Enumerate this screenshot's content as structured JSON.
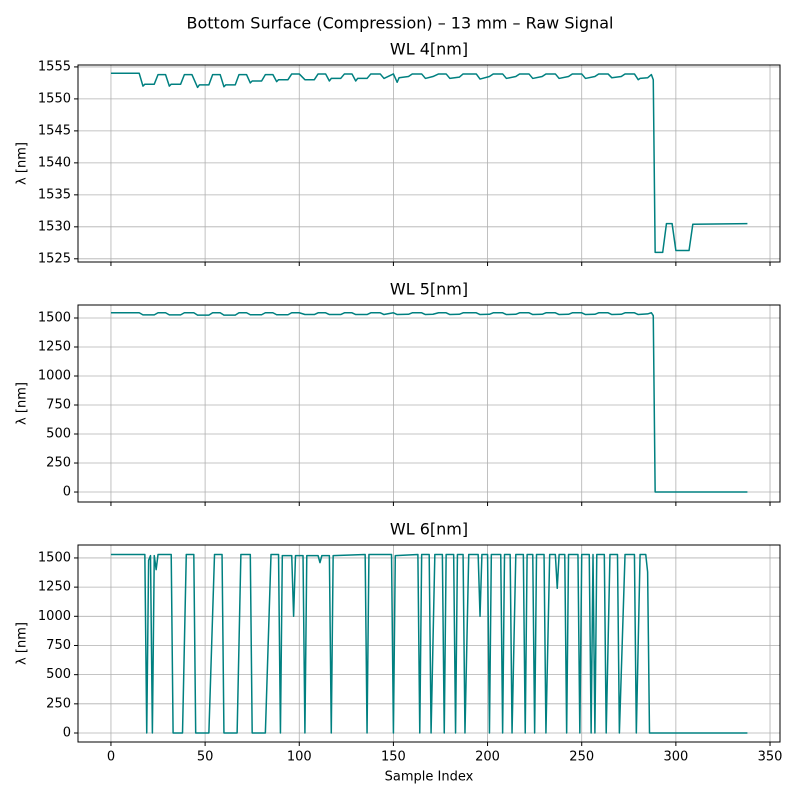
{
  "title": "Bottom Surface (Compression) – 13 mm – Raw Signal",
  "chart_data": [
    {
      "type": "line",
      "title": "WL 4[nm]",
      "ylabel": "λ [nm]",
      "grid": true,
      "show_xticklabels": false,
      "xlim": [
        -17.5,
        355.3
      ],
      "xticks": [
        0,
        50,
        100,
        150,
        200,
        250,
        300,
        350
      ],
      "ylim": [
        1524.5,
        1555.3
      ],
      "yticks": [
        1525,
        1530,
        1535,
        1540,
        1545,
        1550,
        1555
      ],
      "x": [
        0,
        15,
        17,
        18,
        23,
        25,
        29,
        31,
        32,
        37,
        39,
        43,
        46,
        47,
        52,
        54,
        58,
        60,
        61,
        66,
        68,
        72,
        74,
        75,
        80,
        82,
        86,
        88,
        89,
        94,
        96,
        100,
        103,
        108,
        110,
        114,
        116,
        117,
        122,
        124,
        128,
        130,
        131,
        136,
        138,
        143,
        145,
        150,
        152,
        153,
        158,
        160,
        165,
        167,
        171,
        174,
        178,
        180,
        185,
        187,
        194,
        196,
        201,
        203,
        208,
        210,
        215,
        217,
        222,
        224,
        229,
        231,
        236,
        238,
        243,
        245,
        250,
        252,
        257,
        259,
        264,
        266,
        271,
        273,
        278,
        280,
        281,
        285,
        287,
        288,
        289,
        293,
        295,
        298,
        300,
        307,
        309,
        338
      ],
      "series": [
        {
          "color": "#008080",
          "values": [
            1554,
            1554,
            1552,
            1552.3,
            1552.3,
            1553.8,
            1553.8,
            1552,
            1552.3,
            1552.3,
            1553.8,
            1553.8,
            1551.8,
            1552.2,
            1552.2,
            1553.8,
            1553.8,
            1551.9,
            1552.2,
            1552.2,
            1553.8,
            1553.8,
            1552.5,
            1552.8,
            1552.8,
            1553.8,
            1553.8,
            1552.7,
            1553,
            1553,
            1553.9,
            1553.9,
            1553,
            1553,
            1553.9,
            1553.9,
            1552.8,
            1553.2,
            1553.2,
            1553.9,
            1553.9,
            1552.8,
            1553.2,
            1553.2,
            1553.9,
            1553.9,
            1553.2,
            1553.9,
            1552.6,
            1553.3,
            1553.5,
            1553.9,
            1553.9,
            1553.2,
            1553.5,
            1553.9,
            1553.9,
            1553.2,
            1553.4,
            1553.9,
            1553.9,
            1553.1,
            1553.5,
            1553.9,
            1553.9,
            1553.2,
            1553.5,
            1553.9,
            1553.9,
            1553.2,
            1553.5,
            1553.9,
            1553.9,
            1553.2,
            1553.5,
            1553.9,
            1553.9,
            1553.2,
            1553.5,
            1553.9,
            1553.9,
            1553.3,
            1553.5,
            1553.9,
            1553.9,
            1553,
            1553.2,
            1553.3,
            1553.8,
            1553,
            1526,
            1526,
            1530.5,
            1530.5,
            1526.3,
            1526.3,
            1530.4,
            1530.5
          ]
        }
      ]
    },
    {
      "type": "line",
      "title": "WL 5[nm]",
      "ylabel": "λ [nm]",
      "grid": true,
      "show_xticklabels": false,
      "xlim": [
        -17.5,
        355.3
      ],
      "xticks": [
        0,
        50,
        100,
        150,
        200,
        250,
        300,
        350
      ],
      "ylim": [
        -86,
        1612
      ],
      "yticks": [
        0,
        250,
        500,
        750,
        1000,
        1250,
        1500
      ],
      "x": [
        0,
        15,
        17,
        23,
        25,
        29,
        31,
        37,
        39,
        44,
        46,
        52,
        54,
        58,
        60,
        66,
        68,
        72,
        74,
        80,
        82,
        86,
        88,
        94,
        96,
        100,
        103,
        108,
        110,
        114,
        116,
        122,
        124,
        128,
        130,
        136,
        138,
        143,
        145,
        150,
        152,
        158,
        160,
        165,
        167,
        171,
        174,
        178,
        180,
        185,
        187,
        194,
        196,
        201,
        203,
        208,
        210,
        215,
        217,
        222,
        224,
        229,
        231,
        236,
        238,
        243,
        245,
        250,
        252,
        257,
        259,
        264,
        266,
        271,
        273,
        278,
        280,
        285,
        287,
        288,
        289,
        338
      ],
      "series": [
        {
          "color": "#008080",
          "values": [
            1545,
            1545,
            1527,
            1527,
            1545,
            1545,
            1527,
            1527,
            1545,
            1545,
            1525,
            1525,
            1545,
            1545,
            1525,
            1525,
            1545,
            1545,
            1528,
            1528,
            1545,
            1545,
            1528,
            1528,
            1545,
            1545,
            1530,
            1530,
            1545,
            1545,
            1530,
            1530,
            1545,
            1545,
            1530,
            1530,
            1545,
            1545,
            1530,
            1545,
            1530,
            1532,
            1545,
            1545,
            1530,
            1532,
            1545,
            1545,
            1530,
            1532,
            1545,
            1545,
            1530,
            1532,
            1545,
            1545,
            1530,
            1532,
            1545,
            1545,
            1530,
            1532,
            1545,
            1545,
            1530,
            1532,
            1545,
            1545,
            1530,
            1532,
            1545,
            1545,
            1530,
            1532,
            1545,
            1545,
            1530,
            1535,
            1545,
            1520,
            0,
            0
          ]
        }
      ]
    },
    {
      "type": "line",
      "title": "WL 6[nm]",
      "ylabel": "λ [nm]",
      "xlabel": "Sample Index",
      "grid": true,
      "show_xticklabels": true,
      "xlim": [
        -17.5,
        355.3
      ],
      "xticks": [
        0,
        50,
        100,
        150,
        200,
        250,
        300,
        350
      ],
      "ylim": [
        -77,
        1611
      ],
      "yticks": [
        0,
        250,
        500,
        750,
        1000,
        1250,
        1500
      ],
      "x": [
        0,
        18,
        19,
        20,
        21,
        22,
        23,
        24,
        25,
        32,
        33,
        38,
        40,
        44,
        45,
        52,
        55,
        59,
        60,
        67,
        69,
        74,
        75,
        82,
        85,
        89,
        90,
        91,
        96,
        97,
        98,
        102,
        103,
        104,
        110,
        111,
        112,
        116,
        117,
        118,
        135,
        136,
        137,
        149,
        150,
        151,
        163,
        164,
        165,
        169,
        170,
        172,
        176,
        177,
        178,
        182,
        183,
        184,
        187,
        188,
        190,
        195,
        196,
        197,
        200,
        201,
        202,
        207,
        208,
        209,
        212,
        213,
        215,
        219,
        220,
        221,
        224,
        225,
        226,
        230,
        231,
        233,
        236,
        237,
        238,
        241,
        242,
        243,
        248,
        249,
        250,
        254,
        255,
        256,
        257,
        258,
        262,
        263,
        265,
        269,
        270,
        273,
        278,
        279,
        281,
        284,
        285,
        286,
        338
      ],
      "series": [
        {
          "color": "#008080",
          "values": [
            1530,
            1530,
            0,
            1480,
            1520,
            0,
            1520,
            1400,
            1530,
            1530,
            0,
            0,
            1530,
            1530,
            0,
            0,
            1530,
            1530,
            0,
            0,
            1530,
            1530,
            0,
            0,
            1530,
            1530,
            0,
            1520,
            1520,
            1000,
            1520,
            1520,
            0,
            1520,
            1520,
            1460,
            1520,
            1520,
            0,
            1520,
            1530,
            0,
            1530,
            1530,
            0,
            1520,
            1530,
            0,
            1530,
            1530,
            0,
            1530,
            1530,
            0,
            1530,
            1530,
            0,
            1530,
            1530,
            0,
            1530,
            1530,
            1000,
            1530,
            1530,
            0,
            1530,
            1530,
            0,
            1530,
            1530,
            0,
            1530,
            1530,
            0,
            1530,
            1530,
            0,
            1530,
            1530,
            0,
            1530,
            1530,
            1240,
            1530,
            1530,
            0,
            1530,
            1530,
            0,
            1530,
            1530,
            0,
            1530,
            0,
            1530,
            1530,
            0,
            1530,
            1530,
            0,
            1530,
            1530,
            0,
            1530,
            1530,
            1380,
            0,
            0
          ]
        }
      ]
    }
  ]
}
